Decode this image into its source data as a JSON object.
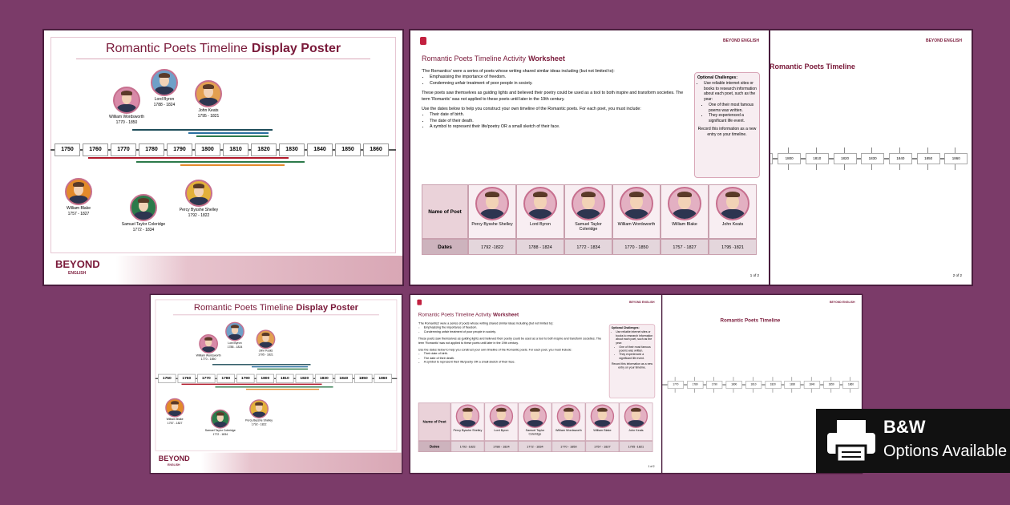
{
  "poster": {
    "title_main": "Romantic Poets Timeline",
    "title_bold": "Display Poster",
    "years": [
      "1750",
      "1760",
      "1770",
      "1780",
      "1790",
      "1800",
      "1810",
      "1820",
      "1830",
      "1840",
      "1850",
      "1860"
    ],
    "poets": [
      {
        "name": "William Wordsworth",
        "dates": "1770 - 1850"
      },
      {
        "name": "Lord Byron",
        "dates": "1788 - 1824"
      },
      {
        "name": "John Keats",
        "dates": "1795 - 1821"
      },
      {
        "name": "William Blake",
        "dates": "1757 - 1827"
      },
      {
        "name": "Samuel Taylor Coleridge",
        "dates": "1772 - 1834"
      },
      {
        "name": "Percy Bysshe Shelley",
        "dates": "1792 - 1822"
      }
    ],
    "brand": "BEYOND",
    "brand_sub": "ENGLISH"
  },
  "worksheet": {
    "title_main": "Romantic Poets Timeline Activity",
    "title_bold": "Worksheet",
    "brand": "BEYOND ENGLISH",
    "intro": "'The Romantics' were a series of poets whose writing shared similar ideas including (but not limited to):",
    "bullets": [
      "Emphasising the importance of freedom.",
      "Condemning unfair treatment of poor people in society."
    ],
    "para2": "These poets saw themselves as guiding lights and believed their poetry could be used as a tool to both inspire and transform societies. The term 'Romantic' was not applied to these poets until later in the 19th century.",
    "para3": "Use the dates below to help you construct your own timeline of the Romantic poets. For each poet, you must include:",
    "bullets2": [
      "Their date of birth.",
      "The date of their death.",
      "A symbol to represent their life/poetry OR a small sketch of their face."
    ],
    "challenges": {
      "heading": "Optional Challenges:",
      "items": [
        "Use reliable internet sites or books to research information about each poet, such as the year:",
        "One of their most famous poems was written.",
        "They experienced a significant life event."
      ],
      "note": "Record this information as a new entry on your timeline."
    },
    "table": {
      "row_headers": [
        "Name of Poet",
        "Dates"
      ],
      "names": [
        "Percy Bysshe Shelley",
        "Lord Byron",
        "Samuel Taylor Coleridge",
        "William Wordsworth",
        "William Blake",
        "John Keats"
      ],
      "dates": [
        "1792 -1822",
        "1788 - 1824",
        "1772 - 1834",
        "1770 - 1850",
        "1757 - 1827",
        "1795 -1821"
      ]
    },
    "page": "1 of 2"
  },
  "timeline_page": {
    "title": "Romantic Poets Timeline",
    "brand": "BEYOND ENGLISH",
    "years": [
      "1770",
      "1780",
      "1790",
      "1800",
      "1810",
      "1820",
      "1830",
      "1840",
      "1850",
      "1860"
    ],
    "page": "2 of 2"
  },
  "badge": {
    "line1": "B&W",
    "line2": "Options Available"
  }
}
